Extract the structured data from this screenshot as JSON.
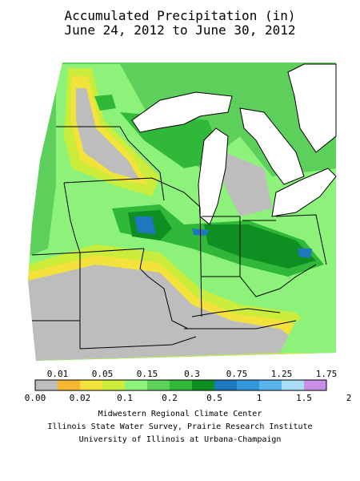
{
  "title": {
    "line1": "Accumulated Precipitation (in)",
    "line2": "June 24, 2012 to June 30, 2012"
  },
  "legend": {
    "upper_labels": [
      "0.01",
      "0.05",
      "0.15",
      "0.3",
      "0.75",
      "1.25",
      "1.75"
    ],
    "lower_labels": [
      "0.00",
      "0.02",
      "0.1",
      "0.2",
      "0.5",
      "1",
      "1.5",
      "2"
    ],
    "colors": [
      "#bdbdbd",
      "#f5b731",
      "#f2e23b",
      "#c9ed3a",
      "#8df27a",
      "#5cd05a",
      "#30b838",
      "#0f8f22",
      "#1e78be",
      "#3498dd",
      "#59b4ee",
      "#a9dcf5",
      "#c98ee8"
    ]
  },
  "credits": {
    "line1": "Midwestern Regional Climate Center",
    "line2": "Illinois State Water Survey, Prairie Research Institute",
    "line3": "University of Illinois at Urbana-Champaign"
  }
}
